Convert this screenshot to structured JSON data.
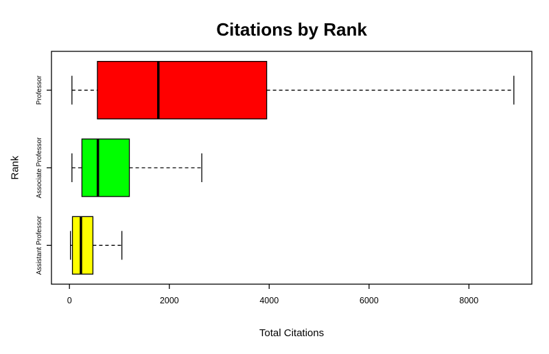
{
  "chart_data": {
    "type": "boxplot",
    "orientation": "horizontal",
    "title": "Citations by Rank",
    "xlabel": "Total Citations",
    "ylabel": "Rank",
    "grid": false,
    "xlim": [
      -360,
      9260
    ],
    "x_ticks": [
      0,
      2000,
      4000,
      6000,
      8000
    ],
    "x_tick_labels": [
      "0",
      "2000",
      "4000",
      "6000",
      "8000"
    ],
    "colors": {
      "box_border": "#000000",
      "median": "#000000",
      "whisker": "#000000",
      "background": "#ffffff"
    },
    "groups": [
      {
        "label": "Professor",
        "color": "#FF0000",
        "whisker_low": 50,
        "q1": 560,
        "median": 1780,
        "q3": 3950,
        "whisker_high": 8900
      },
      {
        "label": "Associate Professor",
        "color": "#00FF00",
        "whisker_low": 50,
        "q1": 250,
        "median": 570,
        "q3": 1200,
        "whisker_high": 2650
      },
      {
        "label": "Assistant Professor",
        "color": "#FFFF00",
        "whisker_low": 20,
        "q1": 60,
        "median": 230,
        "q3": 470,
        "whisker_high": 1050
      }
    ]
  }
}
